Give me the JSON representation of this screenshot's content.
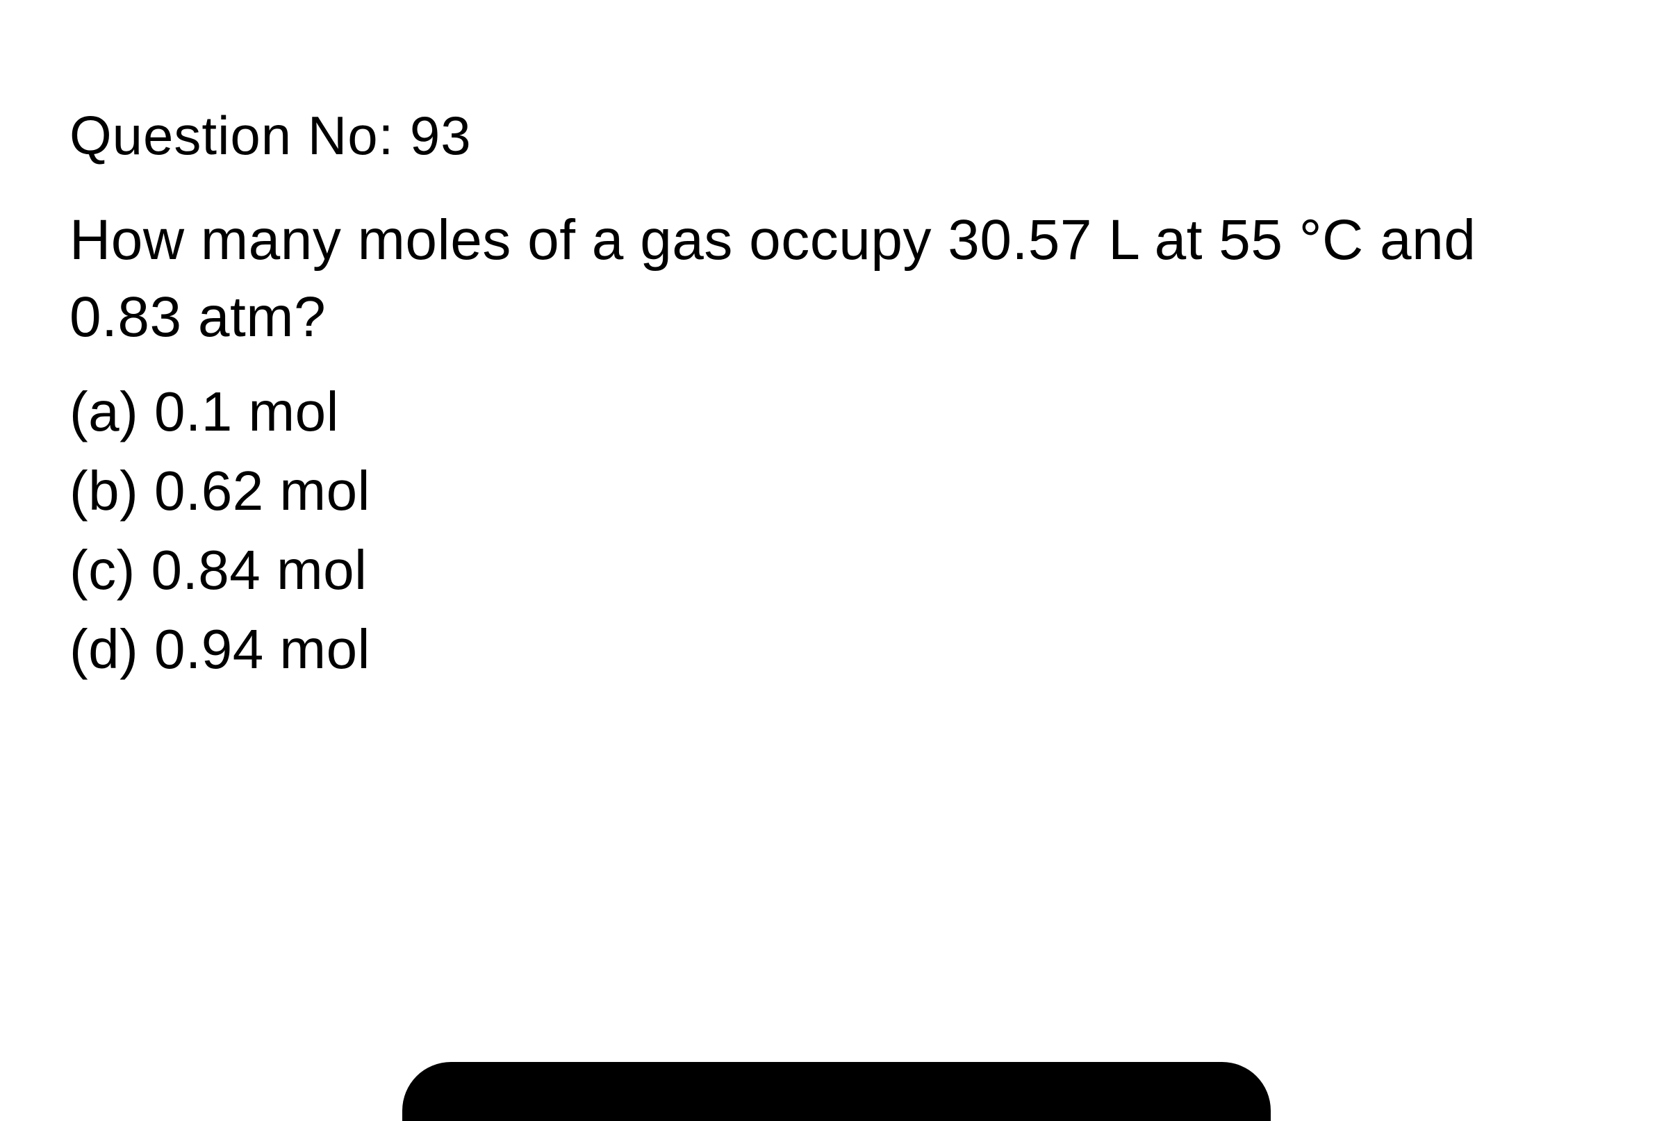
{
  "question": {
    "header": "Question No: 93",
    "text": "How many moles of a gas occupy 30.57 L at 55 °C and 0.83 atm?",
    "options": [
      {
        "label": "(a) 0.1 mol"
      },
      {
        "label": "(b) 0.62 mol"
      },
      {
        "label": "(c) 0.84 mol"
      },
      {
        "label": "(d) 0.94 mol"
      }
    ]
  },
  "styling": {
    "background_color": "#ffffff",
    "text_color": "#000000",
    "header_fontsize": 78,
    "question_fontsize": 82,
    "option_fontsize": 80,
    "font_family": "Arial, Helvetica, sans-serif",
    "bottom_bar_color": "#000000",
    "bottom_bar_width": 1250,
    "bottom_bar_height": 85,
    "bottom_bar_radius": 70
  }
}
